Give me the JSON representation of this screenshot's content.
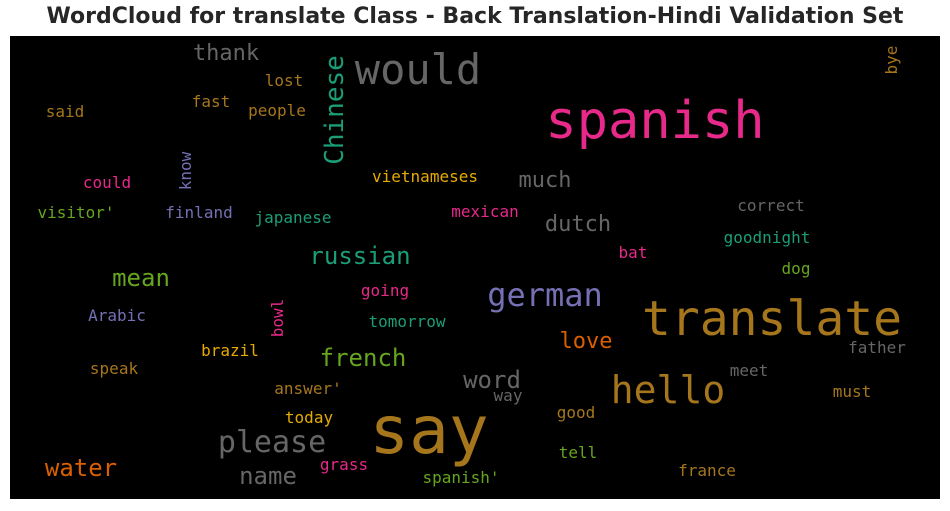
{
  "title": "WordCloud for translate Class - Back Translation-Hindi Validation Set",
  "chart_data": {
    "type": "wordcloud",
    "words": [
      {
        "text": "say",
        "color": "#a6761d"
      },
      {
        "text": "spanish",
        "color": "#e7298a"
      },
      {
        "text": "translate",
        "color": "#a6761d"
      },
      {
        "text": "would",
        "color": "#666666"
      },
      {
        "text": "hello",
        "color": "#a6761d"
      },
      {
        "text": "german",
        "color": "#7570b3"
      },
      {
        "text": "Chinese",
        "color": "#1b9e77"
      },
      {
        "text": "please",
        "color": "#666666"
      },
      {
        "text": "mean",
        "color": "#66a61e"
      },
      {
        "text": "russian",
        "color": "#1b9e77"
      },
      {
        "text": "french",
        "color": "#66a61e"
      },
      {
        "text": "water",
        "color": "#d95f02"
      },
      {
        "text": "name",
        "color": "#666666"
      },
      {
        "text": "word",
        "color": "#666666"
      },
      {
        "text": "thank",
        "color": "#666666"
      },
      {
        "text": "much",
        "color": "#666666"
      },
      {
        "text": "dutch",
        "color": "#666666"
      },
      {
        "text": "love",
        "color": "#d95f02"
      },
      {
        "text": "vietnameses",
        "color": "#e6ab02"
      },
      {
        "text": "japanese",
        "color": "#1b9e77"
      },
      {
        "text": "mexican",
        "color": "#e7298a"
      },
      {
        "text": "finland",
        "color": "#7570b3"
      },
      {
        "text": "visitor'",
        "color": "#66a61e"
      },
      {
        "text": "could",
        "color": "#e7298a"
      },
      {
        "text": "know",
        "color": "#7570b3"
      },
      {
        "text": "lost",
        "color": "#a6761d"
      },
      {
        "text": "fast",
        "color": "#a6761d"
      },
      {
        "text": "people",
        "color": "#a6761d"
      },
      {
        "text": "said",
        "color": "#a6761d"
      },
      {
        "text": "bye",
        "color": "#a6761d"
      },
      {
        "text": "correct",
        "color": "#666666"
      },
      {
        "text": "goodnight",
        "color": "#1b9e77"
      },
      {
        "text": "bat",
        "color": "#e7298a"
      },
      {
        "text": "dog",
        "color": "#66a61e"
      },
      {
        "text": "going",
        "color": "#e7298a"
      },
      {
        "text": "tomorrow",
        "color": "#1b9e77"
      },
      {
        "text": "bowl",
        "color": "#e7298a"
      },
      {
        "text": "Arabic",
        "color": "#7570b3"
      },
      {
        "text": "brazil",
        "color": "#e6ab02"
      },
      {
        "text": "speak",
        "color": "#a6761d"
      },
      {
        "text": "answer'",
        "color": "#a6761d"
      },
      {
        "text": "way",
        "color": "#666666"
      },
      {
        "text": "today",
        "color": "#e6ab02"
      },
      {
        "text": "meet",
        "color": "#666666"
      },
      {
        "text": "father",
        "color": "#666666"
      },
      {
        "text": "must",
        "color": "#a6761d"
      },
      {
        "text": "good",
        "color": "#a6761d"
      },
      {
        "text": "tell",
        "color": "#66a61e"
      },
      {
        "text": "grass",
        "color": "#e7298a"
      },
      {
        "text": "spanish'",
        "color": "#66a61e"
      },
      {
        "text": "france",
        "color": "#a6761d"
      }
    ]
  }
}
